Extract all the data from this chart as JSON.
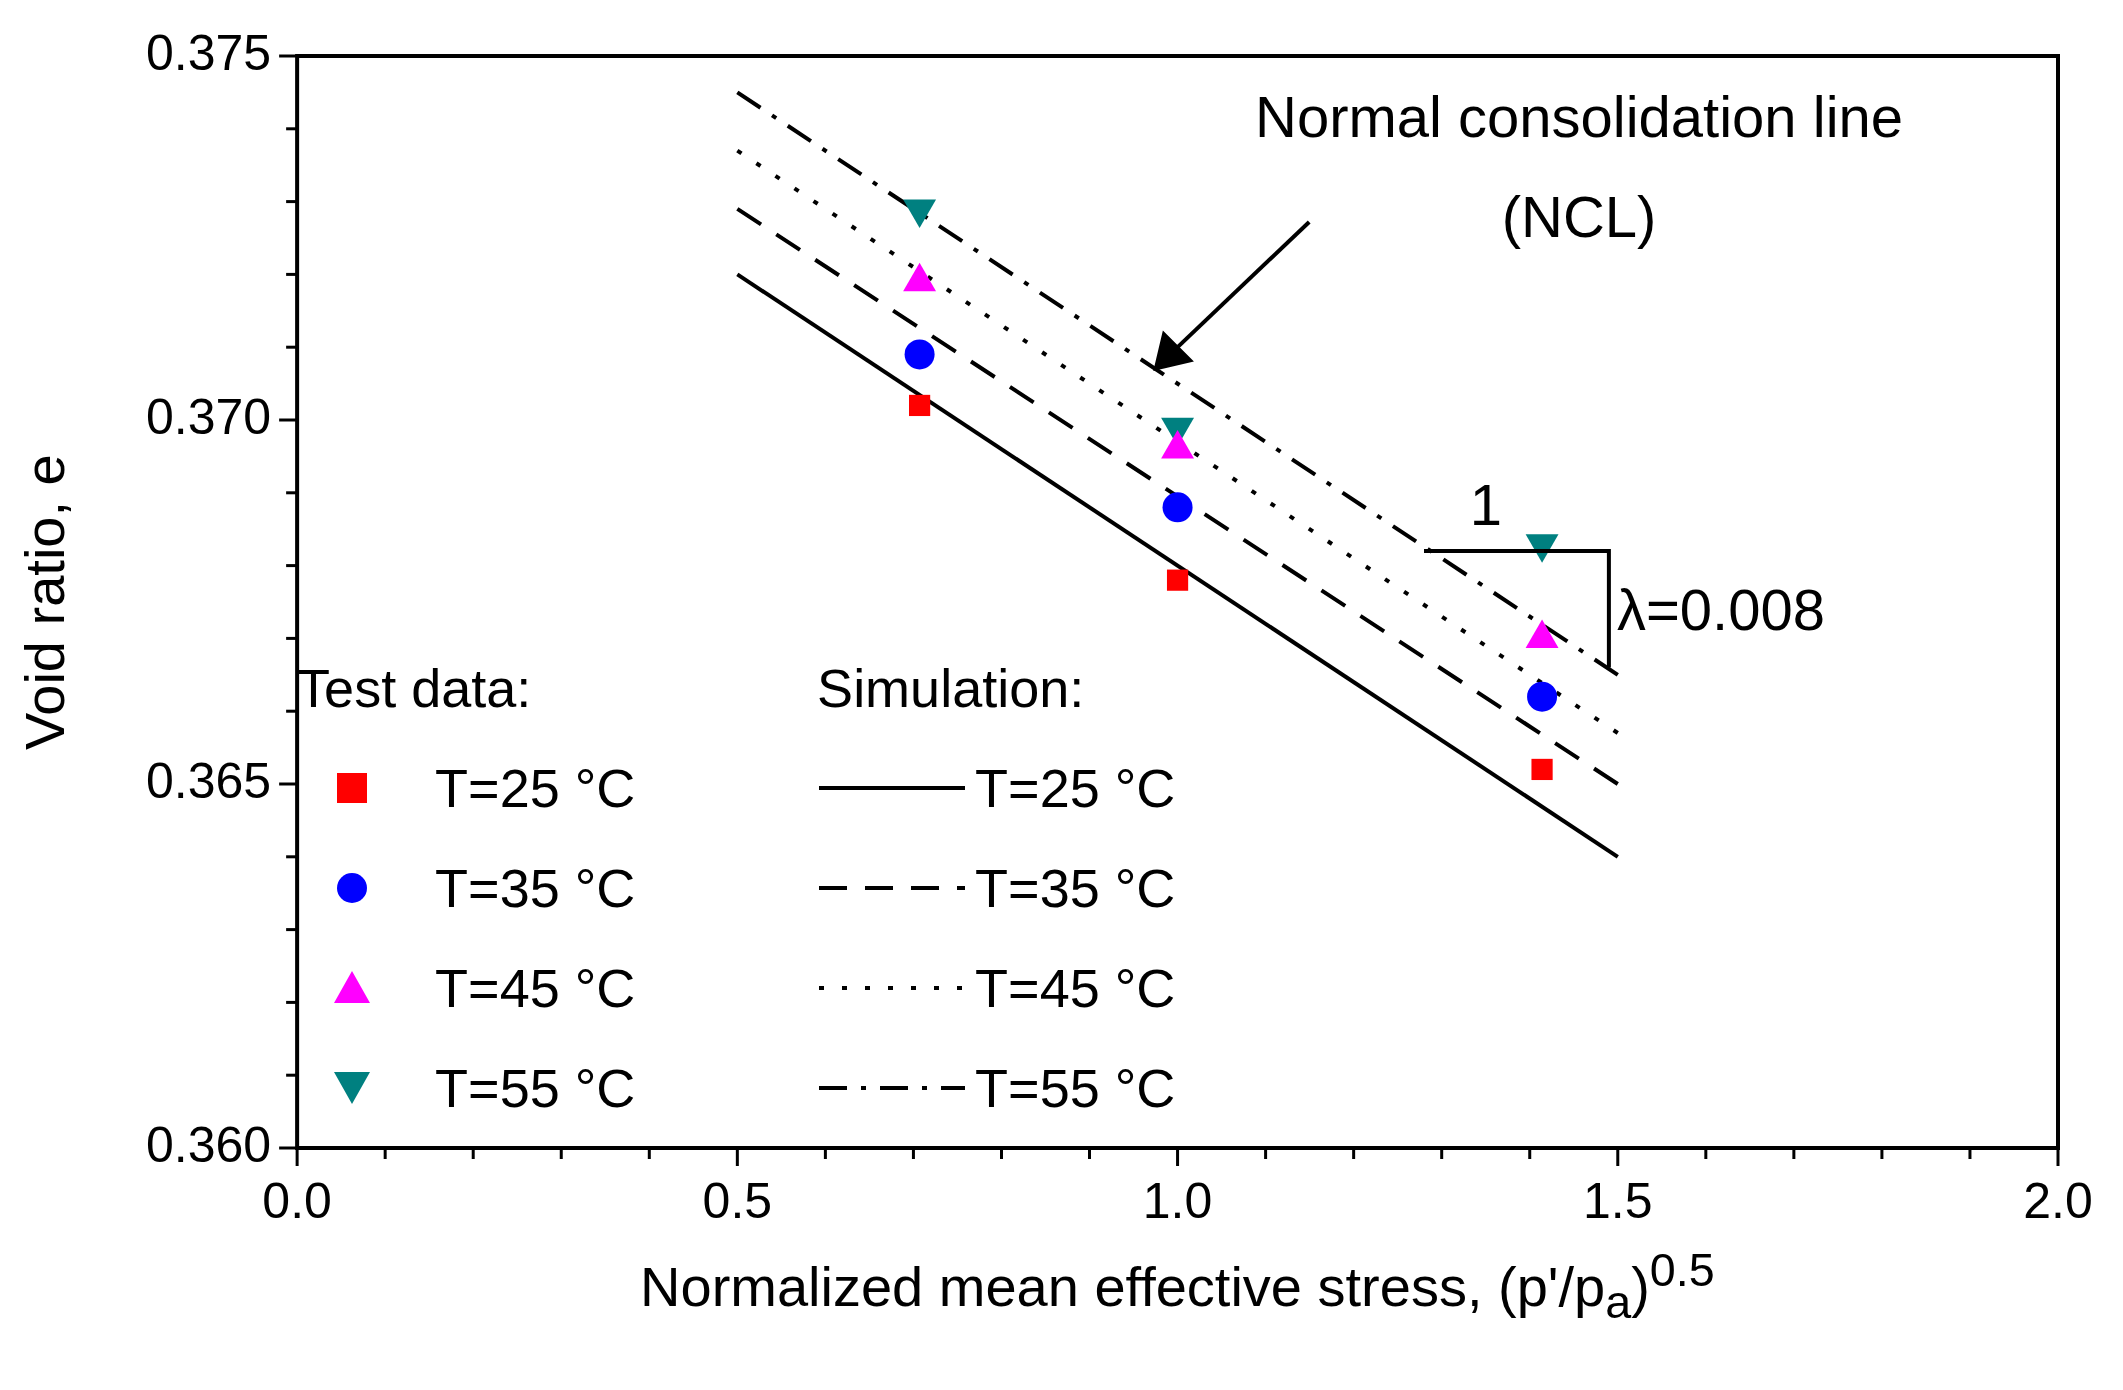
{
  "chart_data": {
    "type": "scatter",
    "xlabel": "Normalized mean effective stress, (p'/p$_{a}$)$^{0.5}$",
    "ylabel": "Void ratio, e",
    "xlim": [
      0,
      2
    ],
    "ylim": [
      0.36,
      0.375
    ],
    "xticks": [
      {
        "value": 0,
        "label": "0.0"
      },
      {
        "value": 0.1,
        "label": null
      },
      {
        "value": 0.2,
        "label": null
      },
      {
        "value": 0.3,
        "label": null
      },
      {
        "value": 0.4,
        "label": null
      },
      {
        "value": 0.5,
        "label": "0.5"
      },
      {
        "value": 0.6,
        "label": null
      },
      {
        "value": 0.7,
        "label": null
      },
      {
        "value": 0.8,
        "label": null
      },
      {
        "value": 0.9,
        "label": null
      },
      {
        "value": 1,
        "label": "1.0"
      },
      {
        "value": 1.1,
        "label": null
      },
      {
        "value": 1.2,
        "label": null
      },
      {
        "value": 1.3,
        "label": null
      },
      {
        "value": 1.4,
        "label": null
      },
      {
        "value": 1.5,
        "label": "1.5"
      },
      {
        "value": 1.6,
        "label": null
      },
      {
        "value": 1.7,
        "label": null
      },
      {
        "value": 1.8,
        "label": null
      },
      {
        "value": 1.9,
        "label": null
      },
      {
        "value": 2,
        "label": "2.0"
      }
    ],
    "yticks": [
      {
        "value": 0.36,
        "label": "0.360"
      },
      {
        "value": 0.361,
        "label": null
      },
      {
        "value": 0.362,
        "label": null
      },
      {
        "value": 0.363,
        "label": null
      },
      {
        "value": 0.364,
        "label": null
      },
      {
        "value": 0.365,
        "label": "0.365"
      },
      {
        "value": 0.366,
        "label": null
      },
      {
        "value": 0.367,
        "label": null
      },
      {
        "value": 0.368,
        "label": null
      },
      {
        "value": 0.369,
        "label": null
      },
      {
        "value": 0.37,
        "label": "0.370"
      },
      {
        "value": 0.371,
        "label": null
      },
      {
        "value": 0.372,
        "label": null
      },
      {
        "value": 0.373,
        "label": null
      },
      {
        "value": 0.374,
        "label": null
      },
      {
        "value": 0.375,
        "label": "0.375"
      }
    ],
    "grid": false,
    "legend": "bottom left",
    "series": [
      {
        "type": "scatter",
        "name": "T=25 °C",
        "color": "#ff0000",
        "marker": "square",
        "x": [
          0.707,
          1.0,
          1.414
        ],
        "values": [
          0.3702,
          0.3678,
          0.3652
        ]
      },
      {
        "type": "scatter",
        "name": "T=35 °C",
        "color": "#0000ff",
        "marker": "circle",
        "x": [
          0.707,
          1.0,
          1.414
        ],
        "values": [
          0.3709,
          0.3688,
          0.3662
        ]
      },
      {
        "type": "scatter",
        "name": "T=45 °C",
        "color": "#ff00ff",
        "marker": "triangle",
        "x": [
          0.707,
          1.0,
          1.414
        ],
        "values": [
          0.3719,
          0.3696,
          0.367
        ]
      },
      {
        "type": "scatter",
        "name": "T=55 °C",
        "color": "#008080",
        "marker": "triangle-down",
        "x": [
          0.707,
          1.0,
          1.414
        ],
        "values": [
          0.3729,
          0.3699,
          0.3683
        ]
      },
      {
        "type": "line",
        "name": "T=25 °C",
        "color": "#000000",
        "line_style": "solid",
        "x": [
          0.5,
          1.5
        ],
        "values": [
          0.372,
          0.364
        ]
      },
      {
        "type": "line",
        "name": "T=35 °C",
        "color": "#000000",
        "line_style": "dashed",
        "x": [
          0.5,
          1.5
        ],
        "values": [
          0.3729,
          0.365
        ]
      },
      {
        "type": "line",
        "name": "T=45 °C",
        "color": "#000000",
        "line_style": "dotted",
        "x": [
          0.5,
          1.5
        ],
        "values": [
          0.3737,
          0.3657
        ]
      },
      {
        "type": "line",
        "name": "T=55 °C",
        "color": "#000000",
        "line_style": "dashdot",
        "x": [
          0.5,
          1.5
        ],
        "values": [
          0.3745,
          0.3665
        ]
      }
    ],
    "annotations": [
      "Normal consolidation line\n(NCL)",
      {
        "text": "1",
        "x": 1.28,
        "y": 0.3682
      },
      {
        "text": "λ=0.008",
        "x": 1.49,
        "y": 0.3666
      },
      "Test data:",
      "Simulation:"
    ]
  }
}
